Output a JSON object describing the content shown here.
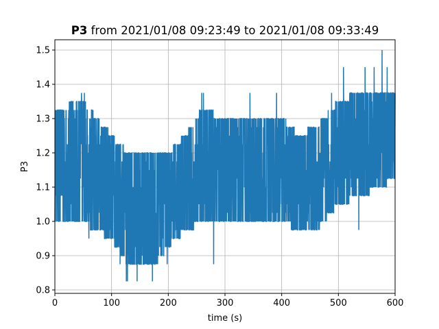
{
  "chart_data": {
    "type": "line",
    "title_bold": "P3",
    "title_rest": " from 2021/01/08 09:23:49 to 2021/01/08 09:33:49",
    "xlabel": "time (s)",
    "ylabel": "P3",
    "xlim": [
      0,
      600
    ],
    "ylim": [
      0.79,
      1.53
    ],
    "xticks": [
      0,
      100,
      200,
      300,
      400,
      500,
      600
    ],
    "yticks": [
      0.8,
      0.9,
      1.0,
      1.1,
      1.2,
      1.3,
      1.4,
      1.5
    ],
    "ytick_labels": [
      "0.8",
      "0.9",
      "1.0",
      "1.1",
      "1.2",
      "1.3",
      "1.4",
      "1.5"
    ],
    "grid": true,
    "color": "#1f77b4",
    "series": [
      {
        "samples_per_second": 1,
        "x_start": 0,
        "x_end": 600,
        "band_trend": [
          {
            "x": 0,
            "lo": 1.0,
            "hi": 1.325
          },
          {
            "x": 50,
            "lo": 1.0,
            "hi": 1.35
          },
          {
            "x": 100,
            "lo": 0.95,
            "hi": 1.25
          },
          {
            "x": 130,
            "lo": 0.875,
            "hi": 1.2
          },
          {
            "x": 175,
            "lo": 0.875,
            "hi": 1.2
          },
          {
            "x": 200,
            "lo": 0.925,
            "hi": 1.2
          },
          {
            "x": 230,
            "lo": 0.975,
            "hi": 1.25
          },
          {
            "x": 260,
            "lo": 1.0,
            "hi": 1.325
          },
          {
            "x": 300,
            "lo": 1.0,
            "hi": 1.3
          },
          {
            "x": 350,
            "lo": 1.0,
            "hi": 1.3
          },
          {
            "x": 400,
            "lo": 1.0,
            "hi": 1.3
          },
          {
            "x": 430,
            "lo": 0.975,
            "hi": 1.25
          },
          {
            "x": 460,
            "lo": 0.975,
            "hi": 1.275
          },
          {
            "x": 500,
            "lo": 1.05,
            "hi": 1.35
          },
          {
            "x": 540,
            "lo": 1.075,
            "hi": 1.375
          },
          {
            "x": 600,
            "lo": 1.125,
            "hi": 1.375
          }
        ],
        "extremes": [
          {
            "x": 126,
            "y": 0.825
          },
          {
            "x": 128,
            "y": 0.825
          },
          {
            "x": 145,
            "y": 0.825
          },
          {
            "x": 172,
            "y": 0.825
          },
          {
            "x": 280,
            "y": 0.875
          },
          {
            "x": 115,
            "y": 0.875
          },
          {
            "x": 152,
            "y": 0.875
          },
          {
            "x": 198,
            "y": 0.875
          },
          {
            "x": 47,
            "y": 1.375
          },
          {
            "x": 52,
            "y": 1.375
          },
          {
            "x": 259,
            "y": 1.375
          },
          {
            "x": 262,
            "y": 1.375
          },
          {
            "x": 344,
            "y": 1.375
          },
          {
            "x": 391,
            "y": 1.375
          },
          {
            "x": 488,
            "y": 1.375
          },
          {
            "x": 509,
            "y": 1.45
          },
          {
            "x": 547,
            "y": 1.45
          },
          {
            "x": 563,
            "y": 1.45
          },
          {
            "x": 577,
            "y": 1.5
          },
          {
            "x": 586,
            "y": 1.45
          },
          {
            "x": 536,
            "y": 0.975
          },
          {
            "x": 60,
            "y": 0.95
          },
          {
            "x": 92,
            "y": 0.95
          }
        ]
      }
    ]
  }
}
